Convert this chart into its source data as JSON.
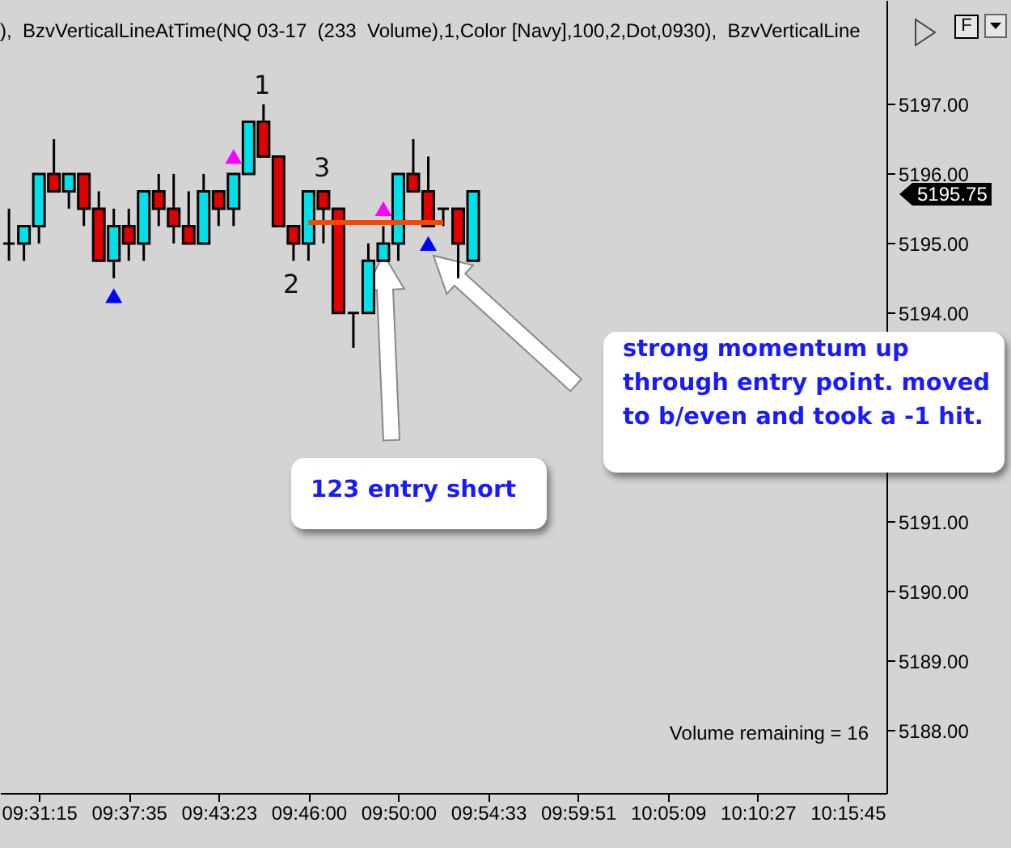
{
  "chart_data": {
    "type": "candlestick",
    "title": "),  BzvVerticalLineAtTime(NQ 03-17  (233  Volume),1,Color [Navy],100,2,Dot,0930),  BzvVerticalLine",
    "categories": [
      null,
      null,
      "09:31:15",
      null,
      null,
      null,
      null,
      null,
      "09:37:35",
      null,
      null,
      null,
      null,
      null,
      "09:43:23",
      null,
      null,
      null,
      null,
      null,
      "09:46:00",
      null,
      null,
      null,
      null,
      null,
      "09:50:00",
      null,
      null,
      null,
      null,
      null,
      "09:54:33",
      null,
      null,
      null,
      null,
      null,
      "09:59:51",
      null,
      null,
      null,
      null,
      null,
      "10:05:09",
      null,
      null,
      null,
      null,
      null,
      "10:10:27",
      null,
      null,
      null,
      null,
      null,
      "10:15:45",
      null,
      null
    ],
    "ohlc": [
      [
        5195,
        5195.5,
        5194.75,
        5195
      ],
      [
        5195,
        5195.25,
        5194.75,
        5195.25
      ],
      [
        5195.25,
        5196,
        5195,
        5196
      ],
      [
        5196,
        5196.5,
        5195.75,
        5195.75
      ],
      [
        5195.75,
        5196,
        5195.5,
        5196
      ],
      [
        5196,
        5196,
        5195.25,
        5195.5
      ],
      [
        5195.5,
        5195.75,
        5194.75,
        5194.75
      ],
      [
        5194.75,
        5195.5,
        5194.5,
        5195.25
      ],
      [
        5195.25,
        5195.5,
        5194.75,
        5195
      ],
      [
        5195,
        5195.75,
        5194.75,
        5195.75
      ],
      [
        5195.75,
        5196,
        5195.25,
        5195.5
      ],
      [
        5195.5,
        5196,
        5195,
        5195.25
      ],
      [
        5195.25,
        5195.75,
        5195,
        5195
      ],
      [
        5195,
        5196,
        5195,
        5195.75
      ],
      [
        5195.75,
        5195.75,
        5195.25,
        5195.5
      ],
      [
        5195.5,
        5196,
        5195.25,
        5196
      ],
      [
        5196,
        5196.75,
        5196,
        5196.75
      ],
      [
        5196.75,
        5197,
        5196.25,
        5196.25
      ],
      [
        5196.25,
        5196.25,
        5195.25,
        5195.25
      ],
      [
        5195.25,
        5195.25,
        5194.75,
        5195
      ],
      [
        5195,
        5195.75,
        5194.75,
        5195.75
      ],
      [
        5195.75,
        5195.75,
        5195,
        5195.5
      ],
      [
        5195.5,
        5195.5,
        5194,
        5194
      ],
      [
        5194,
        5194,
        5193.5,
        5194
      ],
      [
        5194,
        5195,
        5194,
        5194.75
      ],
      [
        5194.75,
        5195.25,
        5194.75,
        5195
      ],
      [
        5195,
        5196,
        5194.75,
        5196
      ],
      [
        5196,
        5196.5,
        5195.75,
        5195.75
      ],
      [
        5195.75,
        5196.25,
        5195.25,
        5195.25
      ],
      [
        5195.5,
        5195.5,
        5195.25,
        5195.5
      ],
      [
        5195.5,
        5195.5,
        5194.5,
        5195
      ],
      [
        5194.75,
        5195.75,
        5194.75,
        5195.75
      ],
      null,
      null,
      null,
      null,
      null,
      null,
      null,
      null,
      null,
      null,
      null,
      null,
      null,
      null,
      null,
      null,
      null,
      null,
      null,
      null,
      null,
      null,
      null,
      null,
      null,
      null,
      null
    ],
    "colors": [
      "#000000",
      "#00e0e8",
      "#00e0e8",
      "#e00000",
      "#00e0e8",
      "#e00000",
      "#e00000",
      "#00e0e8",
      "#e00000",
      "#00e0e8",
      "#e00000",
      "#e00000",
      "#e00000",
      "#00e0e8",
      "#e00000",
      "#00e0e8",
      "#00e0e8",
      "#e00000",
      "#e00000",
      "#e00000",
      "#00e0e8",
      "#e00000",
      "#e00000",
      "#000000",
      "#00e0e8",
      "#00e0e8",
      "#00e0e8",
      "#e00000",
      "#e00000",
      "#000000",
      "#e00000",
      "#00e0e8",
      null,
      null,
      null,
      null,
      null,
      null,
      null,
      null,
      null,
      null,
      null,
      null,
      null,
      null,
      null,
      null,
      null,
      null,
      null,
      null,
      null,
      null,
      null,
      null,
      null,
      null,
      null
    ],
    "series": [
      {
        "type": "line",
        "color": "#ff4500",
        "values": [
          null,
          null,
          null,
          null,
          null,
          null,
          null,
          null,
          null,
          null,
          null,
          null,
          null,
          null,
          null,
          null,
          null,
          null,
          null,
          null,
          5195.3,
          5195.3,
          5195.3,
          5195.3,
          5195.3,
          5195.3,
          5195.3,
          5195.3,
          5195.3,
          5195.3,
          null,
          null,
          null,
          null,
          null,
          null,
          null,
          null,
          null,
          null,
          null,
          null,
          null,
          null,
          null,
          null,
          null,
          null,
          null,
          null,
          null,
          null,
          null,
          null,
          null,
          null,
          null,
          null,
          null
        ]
      },
      {
        "type": "scatter",
        "color": "#ff00ff",
        "marker": "triangle",
        "values": [
          null,
          null,
          null,
          null,
          null,
          null,
          null,
          null,
          null,
          null,
          null,
          null,
          null,
          null,
          null,
          5196.25,
          null,
          null,
          null,
          null,
          null,
          null,
          null,
          null,
          null,
          5195.5,
          null,
          null,
          null,
          null,
          null,
          null,
          null,
          null,
          null,
          null,
          null,
          null,
          null,
          null,
          null,
          null,
          null,
          null,
          null,
          null,
          null,
          null,
          null,
          null,
          null,
          null,
          null,
          null,
          null,
          null,
          null,
          null,
          null
        ]
      },
      {
        "type": "scatter",
        "color": "#0000ff",
        "marker": "triangle",
        "values": [
          null,
          null,
          null,
          null,
          null,
          null,
          null,
          5194.25,
          null,
          null,
          null,
          null,
          null,
          null,
          null,
          null,
          null,
          null,
          null,
          null,
          null,
          null,
          null,
          null,
          null,
          null,
          null,
          null,
          5195,
          null,
          null,
          null,
          null,
          null,
          null,
          null,
          null,
          null,
          null,
          null,
          null,
          null,
          null,
          null,
          null,
          null,
          null,
          null,
          null,
          null,
          null,
          null,
          null,
          null,
          null,
          null,
          null,
          null,
          null
        ]
      }
    ],
    "ylim": [
      5187.1,
      5198.5
    ],
    "yticks": [
      {
        "value": 5188,
        "label": "5188.00"
      },
      {
        "value": 5189,
        "label": "5189.00"
      },
      {
        "value": 5190,
        "label": "5190.00"
      },
      {
        "value": 5191,
        "label": "5191.00"
      },
      {
        "value": 5194,
        "label": "5194.00"
      },
      {
        "value": 5195,
        "label": "5195.00"
      },
      {
        "value": 5196,
        "label": "5196.00"
      },
      {
        "value": 5197,
        "label": "5197.00"
      }
    ],
    "annotations": [
      "123 entry short",
      "strong momentum up through entry point. moved to b/even and took a -1 hit.",
      "Volume remaining = 16",
      "F",
      "1",
      "2",
      "3",
      "5195.75"
    ],
    "grid": false
  }
}
